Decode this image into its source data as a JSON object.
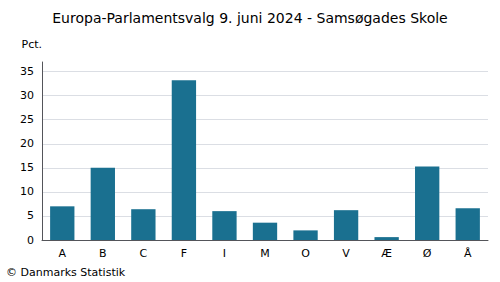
{
  "chart_data": {
    "type": "bar",
    "title": "Europa-Parlamentsvalg 9. juni 2024 - Samsøgades Skole",
    "y_label": "Pct.",
    "annotations": [
      "© Danmarks Statistik"
    ],
    "categories": [
      "A",
      "B",
      "C",
      "F",
      "I",
      "M",
      "O",
      "V",
      "Æ",
      "Ø",
      "Å"
    ],
    "values": [
      7.0,
      15.0,
      6.4,
      33.2,
      6.0,
      3.6,
      2.0,
      6.2,
      0.6,
      15.3,
      6.6
    ],
    "color": "#1a7090",
    "ylim": [
      0,
      37
    ],
    "yticks": [
      0,
      5,
      10,
      15,
      20,
      25,
      30,
      35
    ],
    "grid": true
  }
}
